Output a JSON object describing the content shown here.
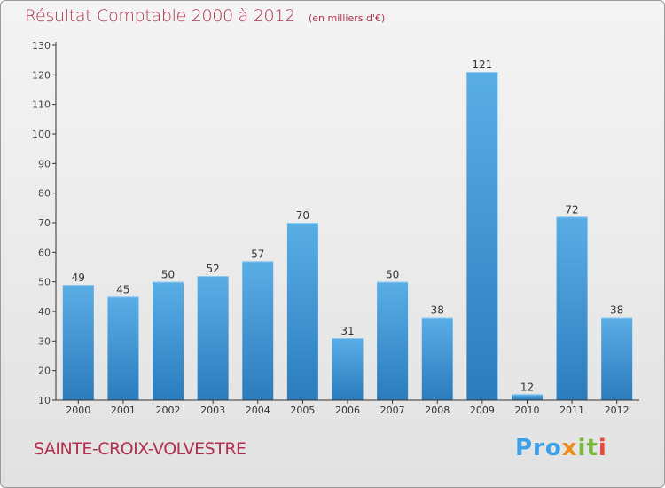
{
  "header": {
    "title": "Résultat Comptable 2000 à 2012",
    "unit": "(en milliers d'€)"
  },
  "footer": {
    "town": "SAINTE-CROIX-VOLVESTRE",
    "logo": "Proxiti",
    "logo_parts": [
      "Pro",
      "x",
      "it",
      "i"
    ]
  },
  "colors": {
    "bar_light": "#5aaee6",
    "bar_dark": "#2a7cbd",
    "title": "#b0304e",
    "axis": "#333333"
  },
  "chart_data": {
    "type": "bar",
    "title": "Résultat Comptable 2000 à 2012",
    "subtitle": "(en milliers d'€)",
    "xlabel": "",
    "ylabel": "",
    "categories": [
      "2000",
      "2001",
      "2002",
      "2003",
      "2004",
      "2005",
      "2006",
      "2007",
      "2008",
      "2009",
      "2010",
      "2011",
      "2012"
    ],
    "values": [
      49,
      45,
      50,
      52,
      57,
      70,
      31,
      50,
      38,
      121,
      12,
      72,
      38
    ],
    "ylim": [
      10,
      130
    ],
    "yticks": [
      10,
      20,
      30,
      40,
      50,
      60,
      70,
      80,
      90,
      100,
      110,
      120,
      130
    ],
    "grid": false,
    "legend": "none"
  }
}
